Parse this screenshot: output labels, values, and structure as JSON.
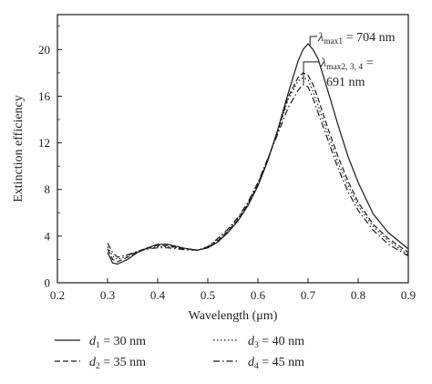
{
  "chart_data": {
    "type": "line",
    "xlabel": "Wavelength (μm)",
    "ylabel": "Extinction efficiency",
    "xlim": [
      0.2,
      0.9
    ],
    "ylim": [
      0,
      23
    ],
    "xticks": [
      0.2,
      0.3,
      0.4,
      0.5,
      0.6,
      0.7,
      0.8,
      0.9
    ],
    "yticks": [
      0,
      4,
      8,
      12,
      16,
      20
    ],
    "xtick_labels": [
      "0.2",
      "0.3",
      "0.4",
      "0.5",
      "0.6",
      "0.7",
      "0.8",
      "0.9"
    ],
    "ytick_labels": [
      "0",
      "4",
      "8",
      "12",
      "16",
      "20"
    ],
    "grid": false,
    "legend_position": "bottom",
    "series": [
      {
        "name": "d1 = 30 nm",
        "legend": {
          "var": "d",
          "sub": "1",
          "rest": " = 30 nm"
        },
        "style": "solid",
        "x": [
          0.3,
          0.31,
          0.32,
          0.34,
          0.36,
          0.38,
          0.4,
          0.42,
          0.44,
          0.46,
          0.48,
          0.5,
          0.52,
          0.54,
          0.56,
          0.58,
          0.6,
          0.62,
          0.64,
          0.66,
          0.68,
          0.69,
          0.7,
          0.71,
          0.72,
          0.74,
          0.76,
          0.78,
          0.8,
          0.83,
          0.86,
          0.9
        ],
        "y": [
          2.6,
          1.7,
          1.6,
          2.0,
          2.6,
          3.0,
          3.3,
          3.3,
          3.1,
          2.9,
          2.8,
          3.0,
          3.5,
          4.3,
          5.3,
          6.6,
          8.3,
          10.5,
          13.2,
          16.2,
          19.0,
          20.0,
          20.5,
          20.0,
          19.2,
          16.4,
          13.5,
          10.8,
          8.6,
          5.9,
          4.3,
          2.9
        ]
      },
      {
        "name": "d2 = 35 nm",
        "legend": {
          "var": "d",
          "sub": "2",
          "rest": " = 35 nm"
        },
        "style": "dashed",
        "x": [
          0.3,
          0.31,
          0.32,
          0.34,
          0.36,
          0.38,
          0.4,
          0.42,
          0.44,
          0.46,
          0.48,
          0.5,
          0.52,
          0.54,
          0.56,
          0.58,
          0.6,
          0.62,
          0.64,
          0.66,
          0.68,
          0.69,
          0.7,
          0.71,
          0.72,
          0.74,
          0.76,
          0.78,
          0.8,
          0.83,
          0.86,
          0.9
        ],
        "y": [
          2.9,
          2.0,
          1.8,
          2.2,
          2.7,
          3.0,
          3.2,
          3.2,
          3.0,
          2.9,
          2.8,
          3.0,
          3.6,
          4.4,
          5.4,
          6.7,
          8.4,
          10.6,
          13.1,
          15.9,
          17.6,
          18.0,
          17.8,
          17.0,
          15.8,
          13.2,
          10.8,
          8.7,
          6.9,
          5.0,
          3.8,
          2.6
        ]
      },
      {
        "name": "d3 = 40 nm",
        "legend": {
          "var": "d",
          "sub": "3",
          "rest": " = 40 nm"
        },
        "style": "dotted",
        "x": [
          0.3,
          0.31,
          0.32,
          0.34,
          0.36,
          0.38,
          0.4,
          0.42,
          0.44,
          0.46,
          0.48,
          0.5,
          0.52,
          0.54,
          0.56,
          0.58,
          0.6,
          0.62,
          0.64,
          0.66,
          0.68,
          0.69,
          0.7,
          0.71,
          0.72,
          0.74,
          0.76,
          0.78,
          0.8,
          0.83,
          0.86,
          0.9
        ],
        "y": [
          3.1,
          2.3,
          2.0,
          2.3,
          2.7,
          2.9,
          3.1,
          3.1,
          3.0,
          2.9,
          2.8,
          3.1,
          3.7,
          4.5,
          5.5,
          6.8,
          8.5,
          10.6,
          13.0,
          15.7,
          17.3,
          17.6,
          17.4,
          16.4,
          15.2,
          12.7,
          10.3,
          8.3,
          6.6,
          4.8,
          3.6,
          2.4
        ]
      },
      {
        "name": "d4 = 45 nm",
        "legend": {
          "var": "d",
          "sub": "4",
          "rest": " = 45 nm"
        },
        "style": "dashdot",
        "x": [
          0.3,
          0.31,
          0.32,
          0.34,
          0.36,
          0.38,
          0.4,
          0.42,
          0.44,
          0.46,
          0.48,
          0.5,
          0.52,
          0.54,
          0.56,
          0.58,
          0.6,
          0.62,
          0.64,
          0.66,
          0.68,
          0.69,
          0.7,
          0.71,
          0.72,
          0.74,
          0.76,
          0.78,
          0.8,
          0.83,
          0.86,
          0.9
        ],
        "y": [
          3.4,
          2.6,
          2.2,
          2.4,
          2.7,
          2.9,
          3.0,
          3.0,
          2.9,
          2.8,
          2.8,
          3.1,
          3.8,
          4.6,
          5.6,
          6.9,
          8.6,
          10.7,
          12.8,
          15.0,
          16.5,
          17.0,
          16.8,
          15.8,
          14.6,
          12.2,
          9.8,
          7.8,
          6.2,
          4.5,
          3.3,
          2.3
        ]
      }
    ],
    "annotations": [
      {
        "symbol": "λ",
        "sub": "max1",
        "rest": " = 704 nm",
        "x": 0.704,
        "y": 20.5
      },
      {
        "symbol": "λ",
        "sub": "max2, 3, 4",
        "rest": " =",
        "line2": "691 nm",
        "x": 0.691,
        "y": 18.0
      }
    ],
    "colors": {
      "line": "#1a1a1a",
      "axis": "#1a1a1a",
      "background": "#ffffff"
    }
  }
}
